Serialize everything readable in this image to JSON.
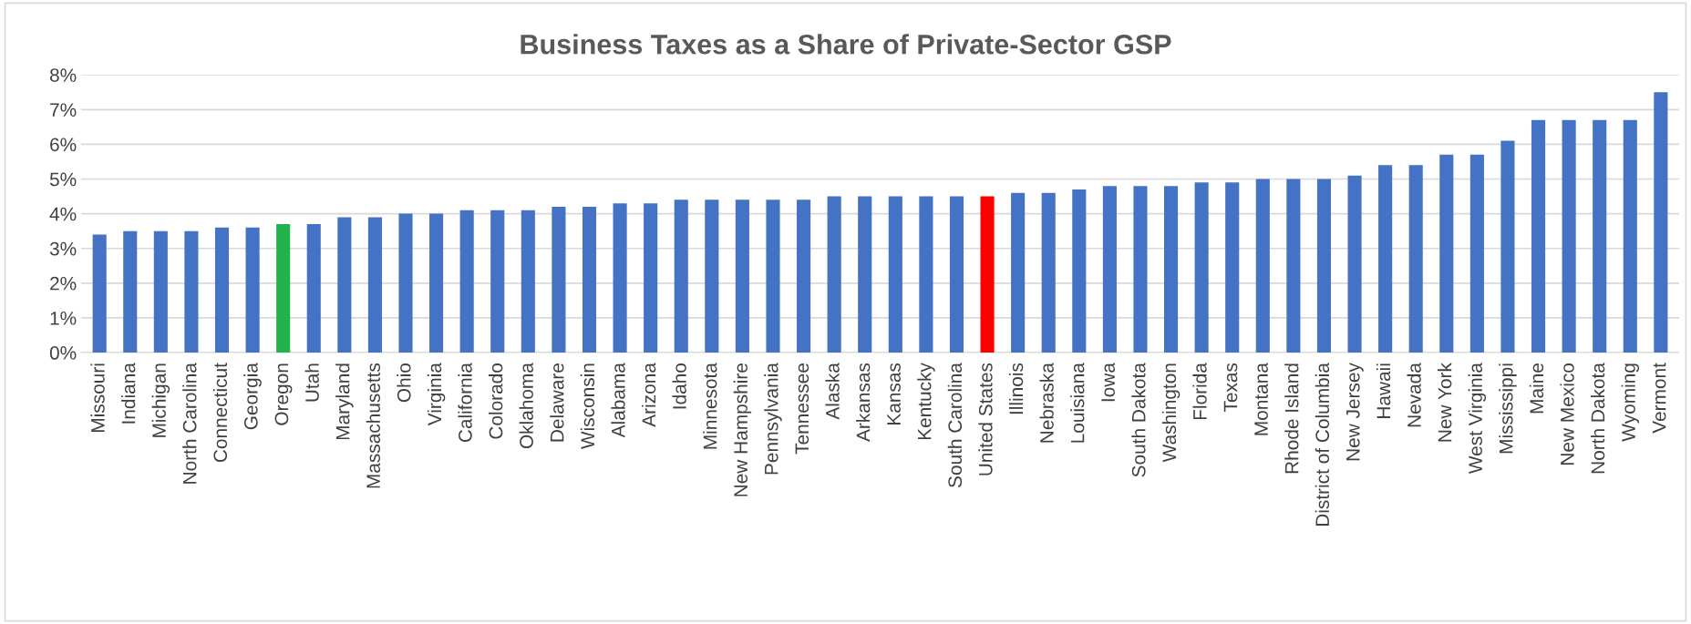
{
  "chart_data": {
    "type": "bar",
    "title": "Business Taxes as a Share of Private-Sector GSP",
    "categories": [
      "Missouri",
      "Indiana",
      "Michigan",
      "North Carolina",
      "Connecticut",
      "Georgia",
      "Oregon",
      "Utah",
      "Maryland",
      "Massachusetts",
      "Ohio",
      "Virginia",
      "California",
      "Colorado",
      "Oklahoma",
      "Delaware",
      "Wisconsin",
      "Alabama",
      "Arizona",
      "Idaho",
      "Minnesota",
      "New Hampshire",
      "Pennsylvania",
      "Tennessee",
      "Alaska",
      "Arkansas",
      "Kansas",
      "Kentucky",
      "South Carolina",
      "United States",
      "Illinois",
      "Nebraska",
      "Louisiana",
      "Iowa",
      "South Dakota",
      "Washington",
      "Florida",
      "Texas",
      "Montana",
      "Rhode Island",
      "District of Columbia",
      "New Jersey",
      "Hawaii",
      "Nevada",
      "New York",
      "West Virginia",
      "Mississippi",
      "Maine",
      "New Mexico",
      "North Dakota",
      "Wyoming",
      "Vermont"
    ],
    "values": [
      3.4,
      3.5,
      3.5,
      3.5,
      3.6,
      3.6,
      3.7,
      3.7,
      3.9,
      3.9,
      4.0,
      4.0,
      4.1,
      4.1,
      4.1,
      4.2,
      4.2,
      4.3,
      4.3,
      4.4,
      4.4,
      4.4,
      4.4,
      4.4,
      4.5,
      4.5,
      4.5,
      4.5,
      4.5,
      4.5,
      4.6,
      4.6,
      4.7,
      4.8,
      4.8,
      4.8,
      4.9,
      4.9,
      5.0,
      5.0,
      5.0,
      5.1,
      5.4,
      5.4,
      5.7,
      5.7,
      6.1,
      6.7,
      6.7,
      6.7,
      6.7,
      7.5
    ],
    "colors": [
      "#4472c4",
      "#4472c4",
      "#4472c4",
      "#4472c4",
      "#4472c4",
      "#4472c4",
      "#21b24b",
      "#4472c4",
      "#4472c4",
      "#4472c4",
      "#4472c4",
      "#4472c4",
      "#4472c4",
      "#4472c4",
      "#4472c4",
      "#4472c4",
      "#4472c4",
      "#4472c4",
      "#4472c4",
      "#4472c4",
      "#4472c4",
      "#4472c4",
      "#4472c4",
      "#4472c4",
      "#4472c4",
      "#4472c4",
      "#4472c4",
      "#4472c4",
      "#4472c4",
      "#ff0000",
      "#4472c4",
      "#4472c4",
      "#4472c4",
      "#4472c4",
      "#4472c4",
      "#4472c4",
      "#4472c4",
      "#4472c4",
      "#4472c4",
      "#4472c4",
      "#4472c4",
      "#4472c4",
      "#4472c4",
      "#4472c4",
      "#4472c4",
      "#4472c4",
      "#4472c4",
      "#4472c4",
      "#4472c4",
      "#4472c4",
      "#4472c4",
      "#4472c4"
    ],
    "ylim": [
      0,
      8
    ],
    "yticks": [
      {
        "value": 0,
        "label": "0%"
      },
      {
        "value": 1,
        "label": "1%"
      },
      {
        "value": 2,
        "label": "2%"
      },
      {
        "value": 3,
        "label": "3%"
      },
      {
        "value": 4,
        "label": "4%"
      },
      {
        "value": 5,
        "label": "5%"
      },
      {
        "value": 6,
        "label": "6%"
      },
      {
        "value": 7,
        "label": "7%"
      },
      {
        "value": 8,
        "label": "8%"
      }
    ],
    "grid": "y",
    "legend": false
  }
}
